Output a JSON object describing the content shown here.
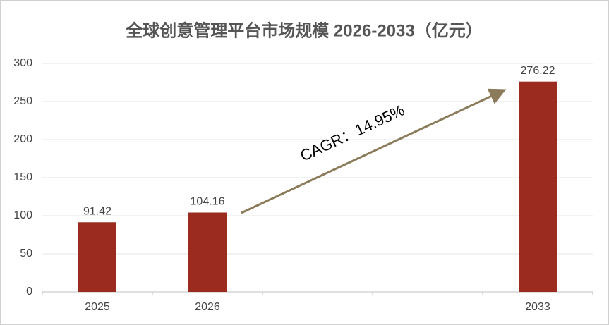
{
  "chart_data": {
    "type": "bar",
    "title": "全球创意管理平台市场规模 2026-2033（亿元）",
    "categories": [
      "2025",
      "2026",
      null,
      null,
      "2033"
    ],
    "values": [
      91.42,
      104.16,
      null,
      null,
      276.22
    ],
    "color": "#9c2b1f",
    "ylim": [
      0,
      300
    ],
    "yticks": [
      0,
      50,
      100,
      150,
      200,
      250,
      300
    ],
    "grid": true,
    "annotation": "CAGR：14.95%"
  }
}
